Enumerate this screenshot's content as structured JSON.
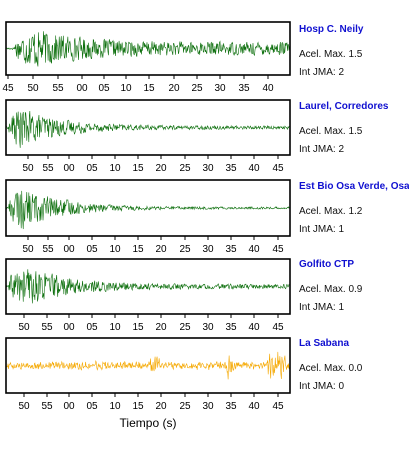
{
  "figure": {
    "xlabel": "Tiempo (s)"
  },
  "colors": {
    "trace": "#0b6e0b",
    "trace_last": "#f5a800",
    "station_name": "#1010d0"
  },
  "chart_data": [
    {
      "type": "line",
      "station": "Hosp C. Neily",
      "accel_label": "Acel. Max.",
      "accel_max": "1.5",
      "jma_label": "Int JMA:",
      "jma": "2",
      "xticks": [
        "45",
        "50",
        "55",
        "00",
        "05",
        "10",
        "15",
        "20",
        "25",
        "30",
        "35",
        "40"
      ],
      "color": "#0b6e0b",
      "envelope": {
        "peak": 0.95,
        "onset": 0.03,
        "peak_at": 0.1,
        "tail": 0.3
      }
    },
    {
      "type": "line",
      "station": "Laurel, Corredores",
      "accel_label": "Acel. Max.",
      "accel_max": "1.5",
      "jma_label": "Int JMA:",
      "jma": "2",
      "xticks": [
        "50",
        "55",
        "00",
        "05",
        "10",
        "15",
        "20",
        "25",
        "30",
        "35",
        "40",
        "45"
      ],
      "color": "#0b6e0b",
      "envelope": {
        "peak": 0.9,
        "onset": 0.01,
        "peak_at": 0.04,
        "tail": 0.08
      }
    },
    {
      "type": "line",
      "station": "Est Bio Osa Verde, Osa",
      "accel_label": "Acel. Max.",
      "accel_max": "1.2",
      "jma_label": "Int JMA:",
      "jma": "1",
      "xticks": [
        "50",
        "55",
        "00",
        "05",
        "10",
        "15",
        "20",
        "25",
        "30",
        "35",
        "40",
        "45"
      ],
      "color": "#0b6e0b",
      "envelope": {
        "peak": 0.92,
        "onset": 0.01,
        "peak_at": 0.05,
        "tail": 0.05
      }
    },
    {
      "type": "line",
      "station": "Golfito CTP",
      "accel_label": "Acel. Max.",
      "accel_max": "0.9",
      "jma_label": "Int JMA:",
      "jma": "1",
      "xticks": [
        "50",
        "55",
        "00",
        "05",
        "10",
        "15",
        "20",
        "25",
        "30",
        "35",
        "40",
        "45"
      ],
      "color": "#0b6e0b",
      "envelope": {
        "peak": 0.95,
        "onset": 0.01,
        "peak_at": 0.06,
        "tail": 0.1
      }
    },
    {
      "type": "line",
      "station": "La Sabana",
      "accel_label": "Acel. Max.",
      "accel_max": "0.0",
      "jma_label": "Int JMA:",
      "jma": "0",
      "xticks": [
        "50",
        "55",
        "00",
        "05",
        "10",
        "15",
        "20",
        "25",
        "30",
        "35",
        "40",
        "45"
      ],
      "color": "#f5a800",
      "envelope": {
        "peak": 0.25,
        "onset": 0.0,
        "peak_at": 0.0,
        "tail": 1.0
      }
    }
  ]
}
